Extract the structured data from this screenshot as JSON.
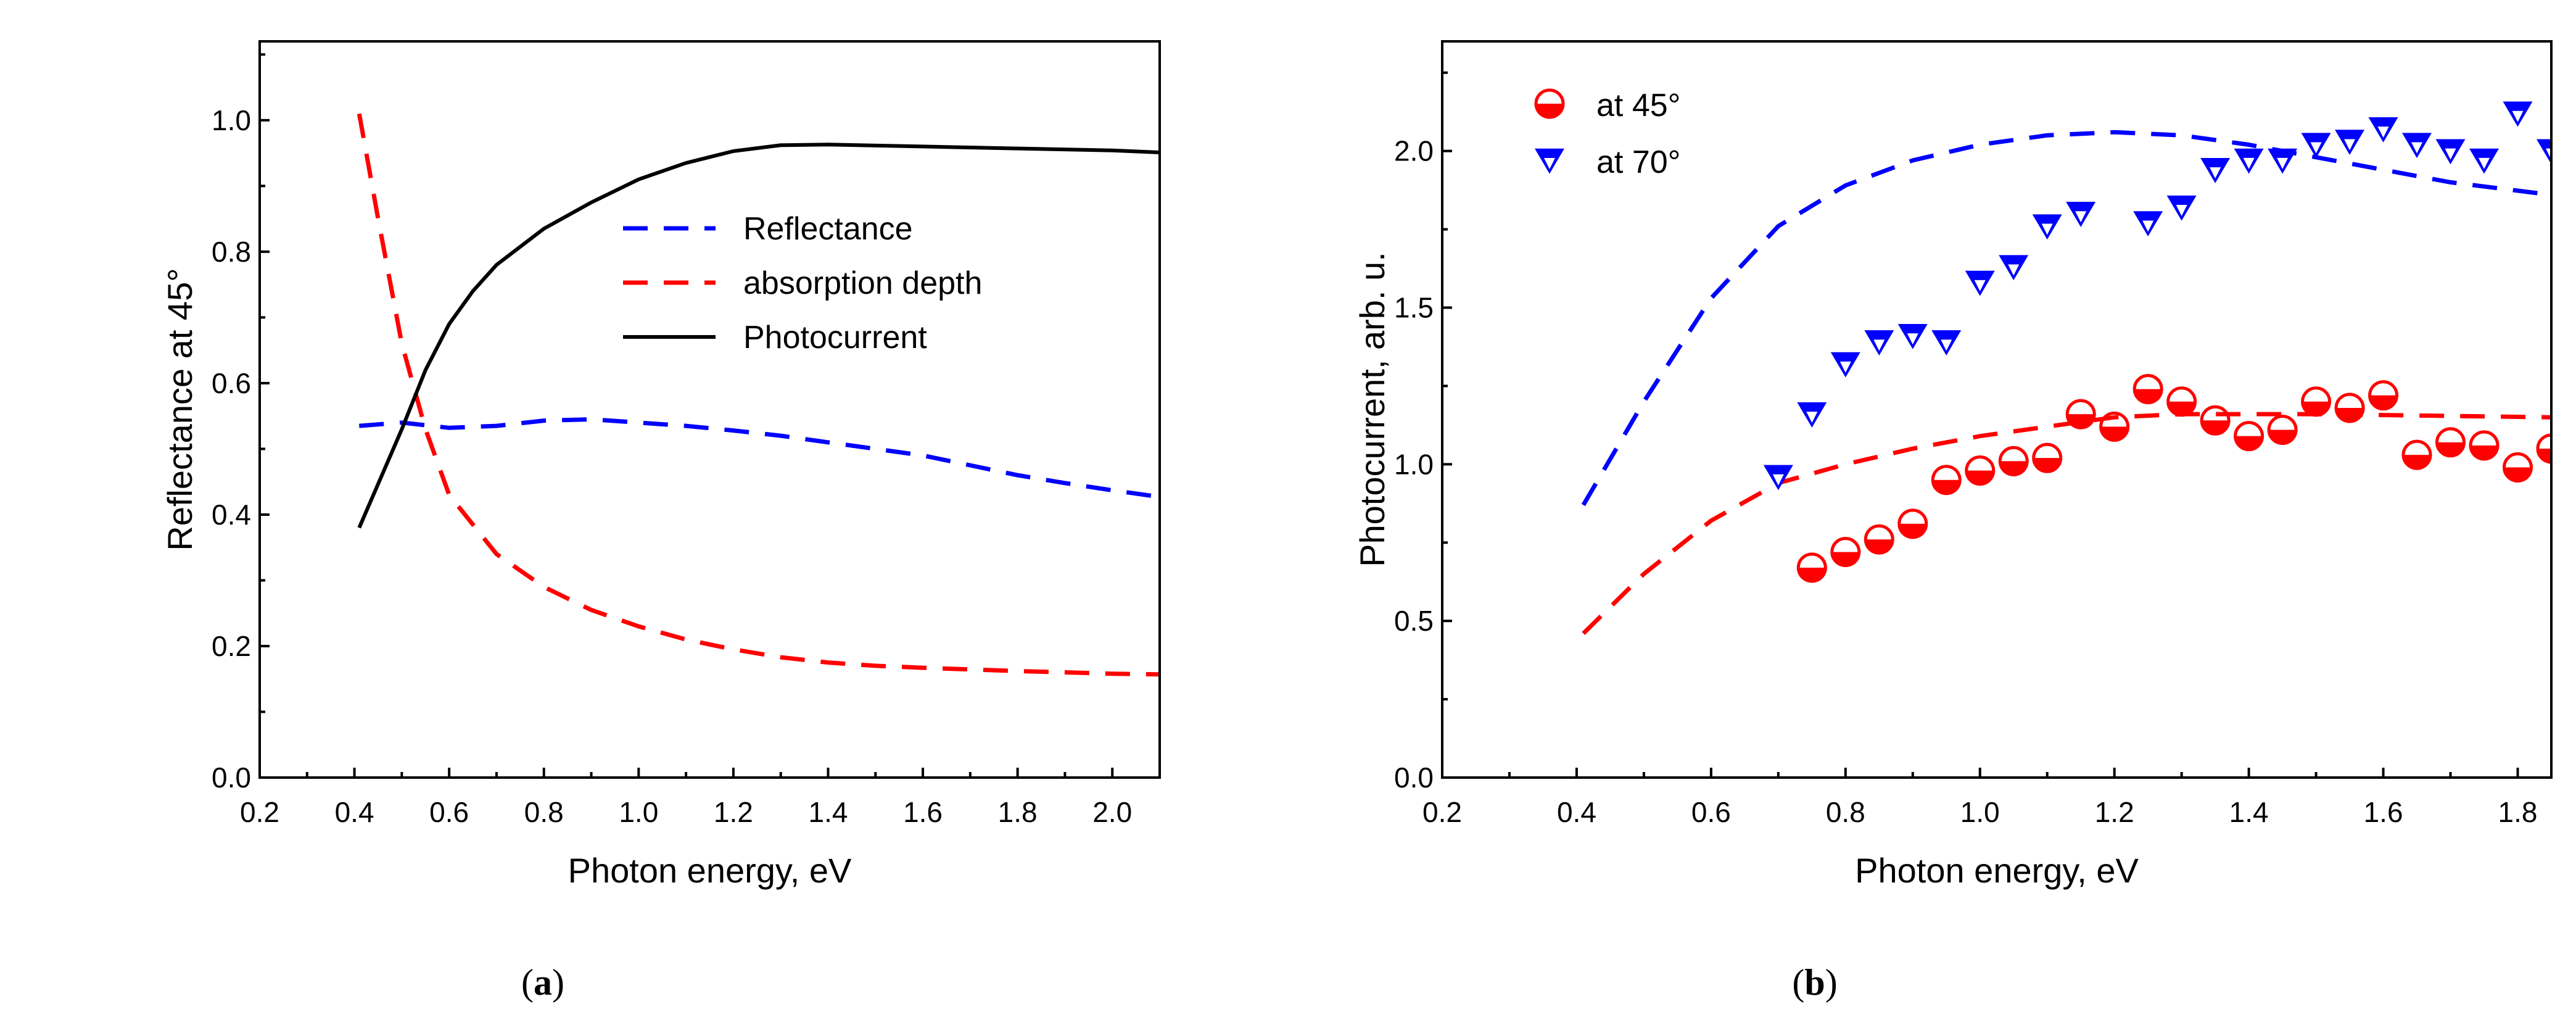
{
  "chart_data": [
    {
      "type": "line",
      "caption_letter": "a",
      "xlabel": "Photon energy, eV",
      "ylabel": "Reflectance at 45°",
      "xlim": [
        0.2,
        2.1
      ],
      "ylim": [
        0,
        1.12
      ],
      "xticks": [
        0.2,
        0.4,
        0.6,
        0.8,
        1.0,
        1.2,
        1.4,
        1.6,
        1.8,
        2.0
      ],
      "yticks": [
        0.0,
        0.2,
        0.4,
        0.6,
        0.8,
        1.0
      ],
      "xtick_labels": [
        "0.2",
        "0.4",
        "0.6",
        "0.8",
        "1.0",
        "1.2",
        "1.4",
        "1.6",
        "1.8",
        "2.0"
      ],
      "ytick_labels": [
        "0.0",
        "0.2",
        "0.4",
        "0.6",
        "0.8",
        "1.0"
      ],
      "legend_position": "center-right",
      "series": [
        {
          "name": "Reflectance",
          "color": "#0000ff",
          "style": "dashed",
          "x": [
            0.41,
            0.5,
            0.6,
            0.7,
            0.8,
            0.9,
            1.0,
            1.1,
            1.2,
            1.3,
            1.4,
            1.5,
            1.6,
            1.7,
            1.8,
            1.9,
            2.0,
            2.1
          ],
          "y": [
            0.535,
            0.54,
            0.532,
            0.535,
            0.543,
            0.545,
            0.54,
            0.535,
            0.528,
            0.52,
            0.51,
            0.5,
            0.49,
            0.475,
            0.46,
            0.448,
            0.437,
            0.427
          ]
        },
        {
          "name": "absorption depth",
          "color": "#ff0000",
          "style": "dashed",
          "x": [
            0.41,
            0.45,
            0.5,
            0.55,
            0.6,
            0.7,
            0.8,
            0.9,
            1.0,
            1.1,
            1.2,
            1.3,
            1.4,
            1.5,
            1.6,
            1.8,
            2.0,
            2.1
          ],
          "y": [
            1.01,
            0.85,
            0.66,
            0.53,
            0.43,
            0.34,
            0.29,
            0.255,
            0.23,
            0.21,
            0.195,
            0.183,
            0.175,
            0.17,
            0.167,
            0.162,
            0.158,
            0.157
          ]
        },
        {
          "name": "Photocurrent",
          "color": "#000000",
          "style": "solid",
          "x": [
            0.41,
            0.5,
            0.55,
            0.6,
            0.65,
            0.7,
            0.8,
            0.9,
            1.0,
            1.1,
            1.2,
            1.3,
            1.4,
            1.6,
            1.8,
            2.0,
            2.1
          ],
          "y": [
            0.38,
            0.53,
            0.62,
            0.69,
            0.74,
            0.78,
            0.835,
            0.875,
            0.91,
            0.935,
            0.953,
            0.962,
            0.963,
            0.96,
            0.957,
            0.954,
            0.951
          ]
        }
      ]
    },
    {
      "type": "scatter",
      "caption_letter": "b",
      "xlabel": "Photon energy, eV",
      "ylabel": "Photocurrent, arb. u.",
      "xlim": [
        0.2,
        1.85
      ],
      "ylim": [
        0,
        2.35
      ],
      "xticks": [
        0.2,
        0.4,
        0.6,
        0.8,
        1.0,
        1.2,
        1.4,
        1.6,
        1.8
      ],
      "yticks": [
        0.0,
        0.5,
        1.0,
        1.5,
        2.0
      ],
      "xtick_labels": [
        "0.2",
        "0.4",
        "0.6",
        "0.8",
        "1.0",
        "1.2",
        "1.4",
        "1.6",
        "1.8"
      ],
      "ytick_labels": [
        "0.0",
        "0.5",
        "1.0",
        "1.5",
        "2.0"
      ],
      "legend_position": "top-left",
      "series": [
        {
          "name": "at 45°",
          "color": "#ff0000",
          "marker": "half-circle",
          "x": [
            0.75,
            0.8,
            0.85,
            0.9,
            0.95,
            1.0,
            1.05,
            1.1,
            1.15,
            1.2,
            1.25,
            1.3,
            1.35,
            1.4,
            1.45,
            1.5,
            1.55,
            1.6,
            1.65,
            1.7,
            1.75,
            1.8,
            1.85
          ],
          "y": [
            0.67,
            0.72,
            0.76,
            0.81,
            0.95,
            0.98,
            1.01,
            1.02,
            1.16,
            1.12,
            1.24,
            1.2,
            1.14,
            1.09,
            1.11,
            1.2,
            1.18,
            1.22,
            1.03,
            1.07,
            1.06,
            0.99,
            1.05
          ]
        },
        {
          "name": "at 70°",
          "color": "#0000ff",
          "marker": "triangle-down",
          "x": [
            0.7,
            0.75,
            0.8,
            0.85,
            0.9,
            0.95,
            1.0,
            1.05,
            1.1,
            1.15,
            1.25,
            1.3,
            1.35,
            1.4,
            1.45,
            1.5,
            1.55,
            1.6,
            1.65,
            1.7,
            1.75,
            1.8,
            1.85
          ],
          "y": [
            0.96,
            1.16,
            1.32,
            1.39,
            1.41,
            1.39,
            1.58,
            1.63,
            1.76,
            1.8,
            1.77,
            1.82,
            1.94,
            1.97,
            1.97,
            2.02,
            2.03,
            2.07,
            2.02,
            2.0,
            1.97,
            2.12,
            2.0
          ]
        }
      ],
      "fits": [
        {
          "color": "#0000ff",
          "style": "dashed",
          "x": [
            0.41,
            0.5,
            0.6,
            0.7,
            0.8,
            0.9,
            1.0,
            1.1,
            1.2,
            1.3,
            1.4,
            1.5,
            1.6,
            1.7,
            1.85
          ],
          "y": [
            0.87,
            1.2,
            1.53,
            1.76,
            1.89,
            1.97,
            2.02,
            2.05,
            2.06,
            2.05,
            2.02,
            1.98,
            1.94,
            1.9,
            1.86
          ]
        },
        {
          "color": "#ff0000",
          "style": "dashed",
          "x": [
            0.41,
            0.5,
            0.6,
            0.7,
            0.8,
            0.9,
            1.0,
            1.1,
            1.2,
            1.3,
            1.5,
            1.85
          ],
          "y": [
            0.46,
            0.65,
            0.82,
            0.94,
            1.0,
            1.05,
            1.09,
            1.12,
            1.15,
            1.16,
            1.16,
            1.15
          ]
        }
      ]
    }
  ]
}
